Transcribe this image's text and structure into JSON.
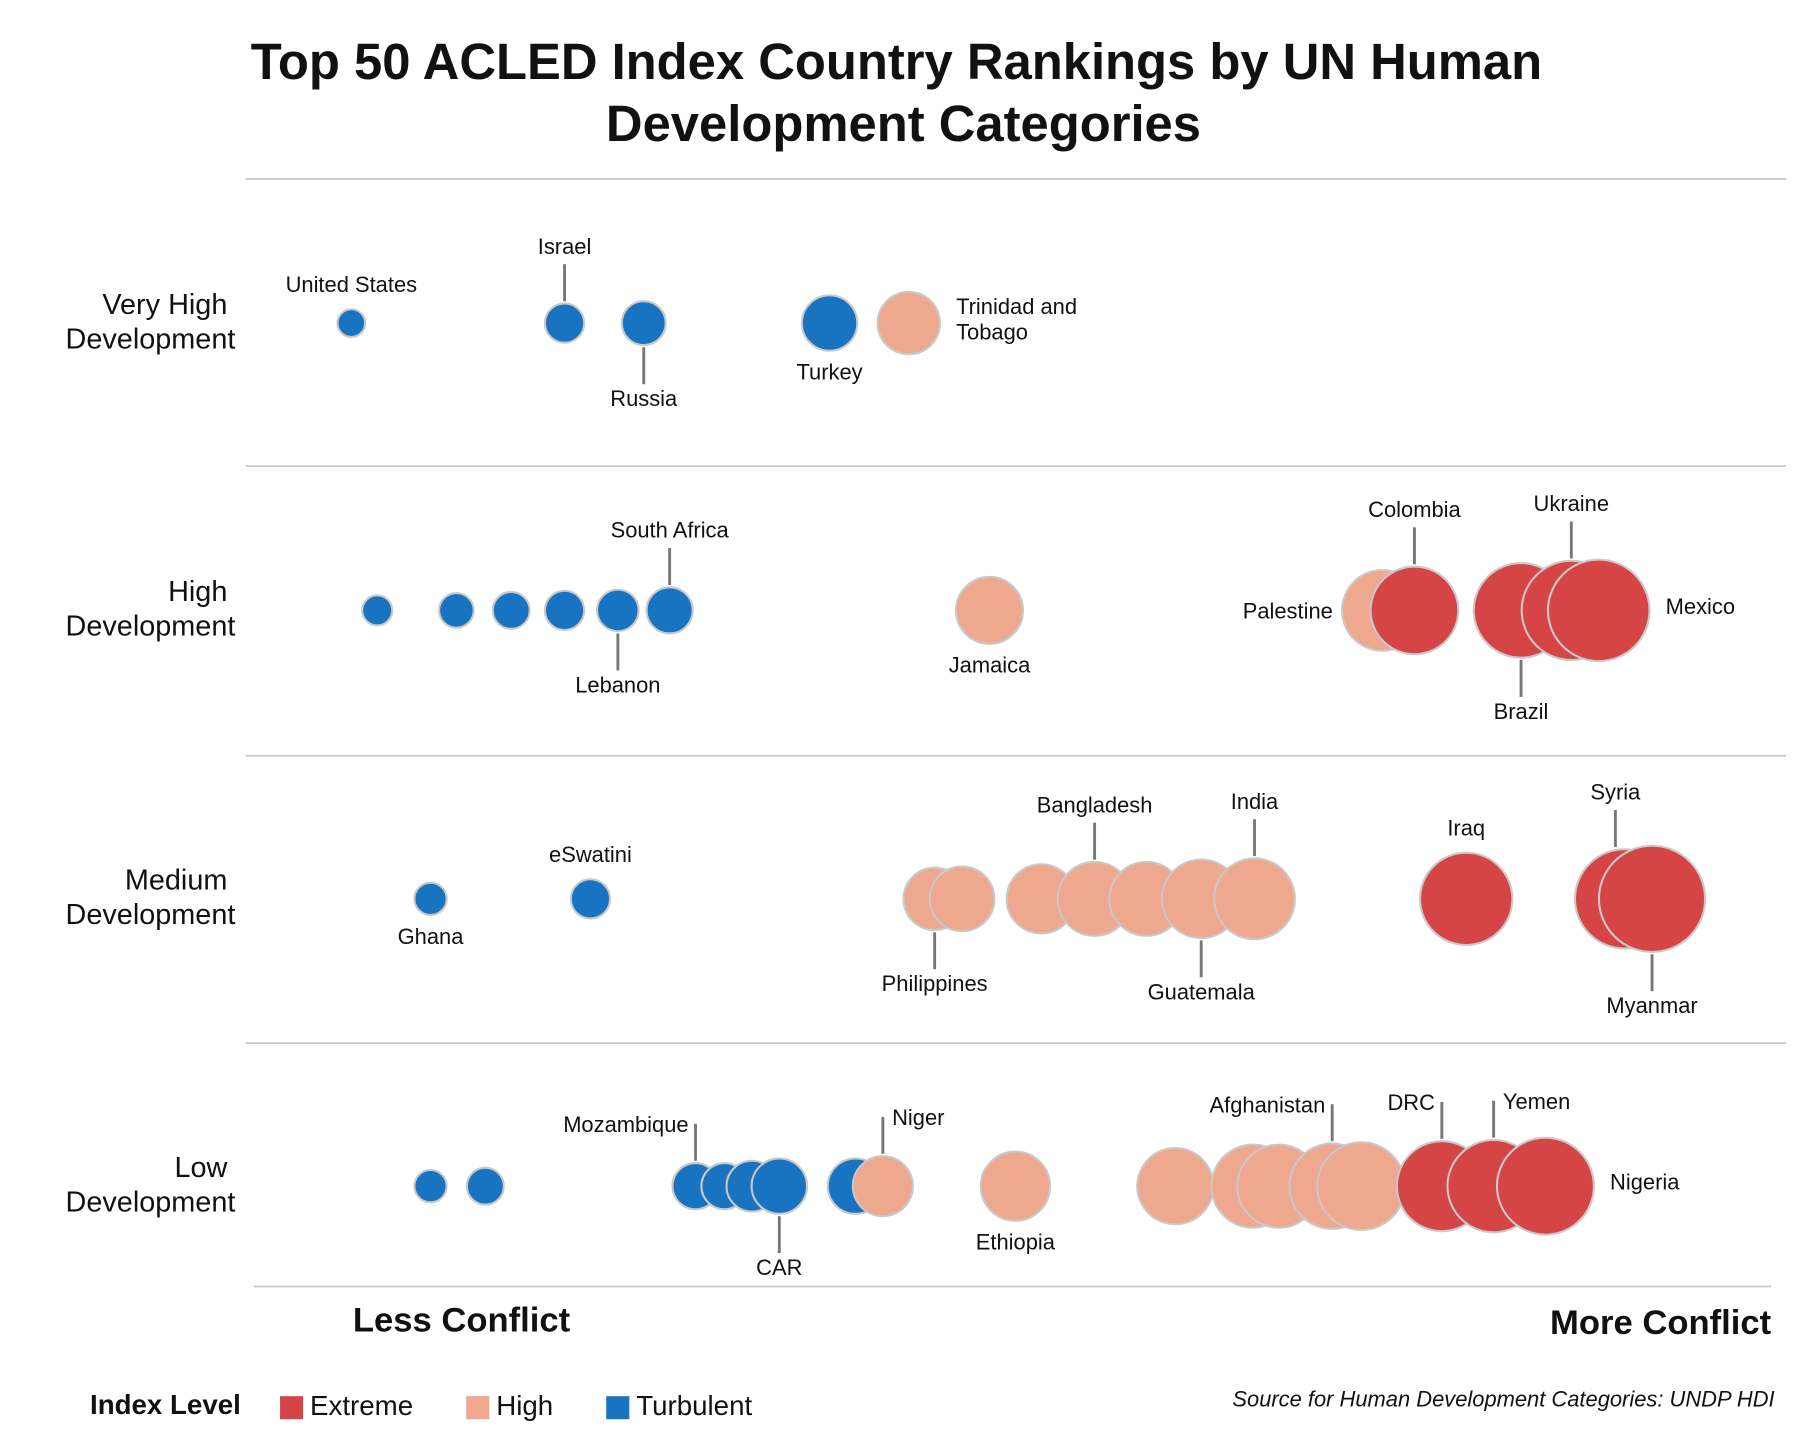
{
  "chart_data": {
    "type": "bubble",
    "title": "Top 50 ACLED Index Country Rankings by UN Human Development Categories",
    "categories": [
      "Very High Development",
      "High Development",
      "Medium Development",
      "Low Development"
    ],
    "xlabel_left": "Less Conflict",
    "xlabel_right": "More Conflict",
    "xlim": [
      0,
      100
    ],
    "legend_title": "Index Level",
    "source": "Source for Human Development Categories: UNDP HDI",
    "series": [
      {
        "name": "Turbulent",
        "color": "#1874c1",
        "x": [
          6.4,
          20.4,
          25.6,
          37.8,
          8.1,
          13.3,
          16.9,
          20.4,
          23.9,
          27.3,
          11.6,
          22.1,
          11.6,
          15.2,
          29.0,
          30.9,
          32.7,
          34.5,
          39.5
        ],
        "row": [
          0,
          0,
          0,
          0,
          1,
          1,
          1,
          1,
          1,
          1,
          2,
          2,
          3,
          3,
          3,
          3,
          3,
          3,
          3
        ],
        "size": [
          12,
          17,
          19,
          24,
          13,
          15,
          16,
          17,
          18,
          20,
          14,
          17,
          14,
          16,
          20,
          20,
          22,
          24,
          24
        ],
        "labels": [
          "United States",
          "Israel",
          "Russia",
          "Turkey",
          null,
          null,
          null,
          null,
          "Lebanon",
          "South Africa",
          "Ghana",
          "eSwatini",
          null,
          null,
          "Mozambique",
          null,
          null,
          "CAR",
          null
        ]
      },
      {
        "name": "High",
        "color": "#eda88e",
        "x": [
          43.0,
          48.3,
          74.1,
          44.7,
          46.5,
          51.7,
          55.2,
          58.6,
          62.2,
          65.7,
          41.3,
          50.0,
          60.5,
          65.6,
          67.3,
          70.8,
          72.7
        ],
        "row": [
          0,
          1,
          1,
          2,
          2,
          2,
          2,
          2,
          2,
          2,
          3,
          3,
          3,
          3,
          3,
          3,
          3
        ],
        "size": [
          27,
          29,
          35,
          27,
          28,
          30,
          32,
          32,
          34,
          35,
          26,
          30,
          33,
          36,
          36,
          37,
          38
        ],
        "labels": [
          "Trinidad and Tobago",
          "Jamaica",
          "Palestine",
          "Philippines",
          null,
          null,
          "Bangladesh",
          null,
          "Guatemala",
          "India",
          "Niger",
          "Ethiopia",
          null,
          null,
          null,
          "Afghanistan",
          null
        ]
      },
      {
        "name": "Extreme",
        "color": "#d64545",
        "x": [
          76.2,
          83.2,
          86.5,
          88.3,
          79.6,
          90.0,
          91.8,
          78.0,
          81.4,
          84.8
        ],
        "row": [
          1,
          1,
          1,
          1,
          2,
          2,
          2,
          3,
          3,
          3
        ],
        "size": [
          38,
          41,
          43,
          44,
          40,
          43,
          46,
          39,
          40,
          42
        ],
        "labels": [
          "Colombia",
          "Brazil",
          "Ukraine",
          "Mexico",
          "Iraq",
          "Syria",
          "Myanmar",
          "DRC",
          "Yemen",
          "Nigeria"
        ]
      }
    ]
  }
}
